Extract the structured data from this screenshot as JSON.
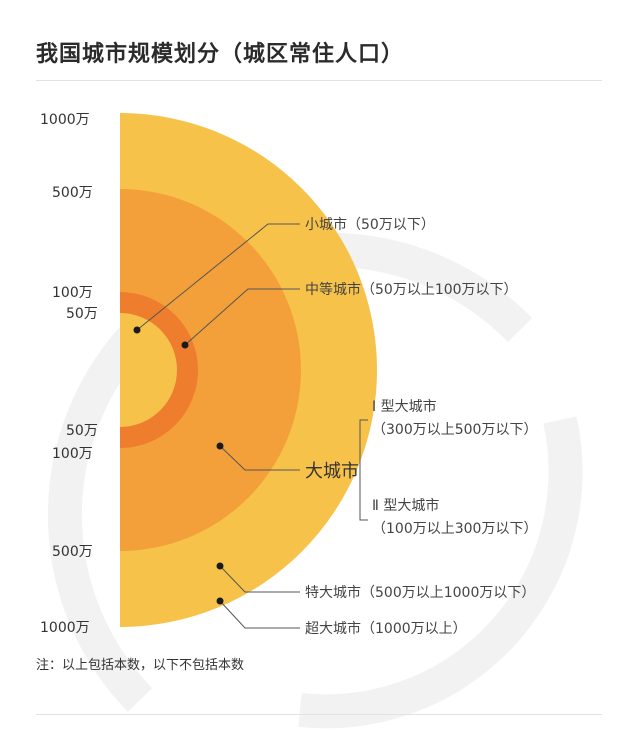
{
  "title": "我国城市规模划分（城区常住人口）",
  "scale_labels": {
    "top_1000": "1000万",
    "top_500": "500万",
    "top_100": "100万",
    "top_50": "50万",
    "bottom_50": "50万",
    "bottom_100": "100万",
    "bottom_500": "500万",
    "bottom_1000": "1000万"
  },
  "categories": {
    "small": "小城市（50万以下）",
    "medium": "中等城市（50万以上100万以下）",
    "large": "大城市",
    "large_type1_name": "Ⅰ 型大城市",
    "large_type1_range": "（300万以上500万以下）",
    "large_type2_name": "Ⅱ 型大城市",
    "large_type2_range": "（100万以上300万以下）",
    "extra_large": "特大城市（500万以上1000万以下）",
    "super_large": "超大城市（1000万以上）"
  },
  "note": "注：以上包括本数，以下不包括本数",
  "colors": {
    "outer": "#f7c24a",
    "large": "#f3a03b",
    "medium_ring": "#ee7e2d",
    "small_core": "#f7c24a",
    "watermark": "#f2f2f2"
  }
}
